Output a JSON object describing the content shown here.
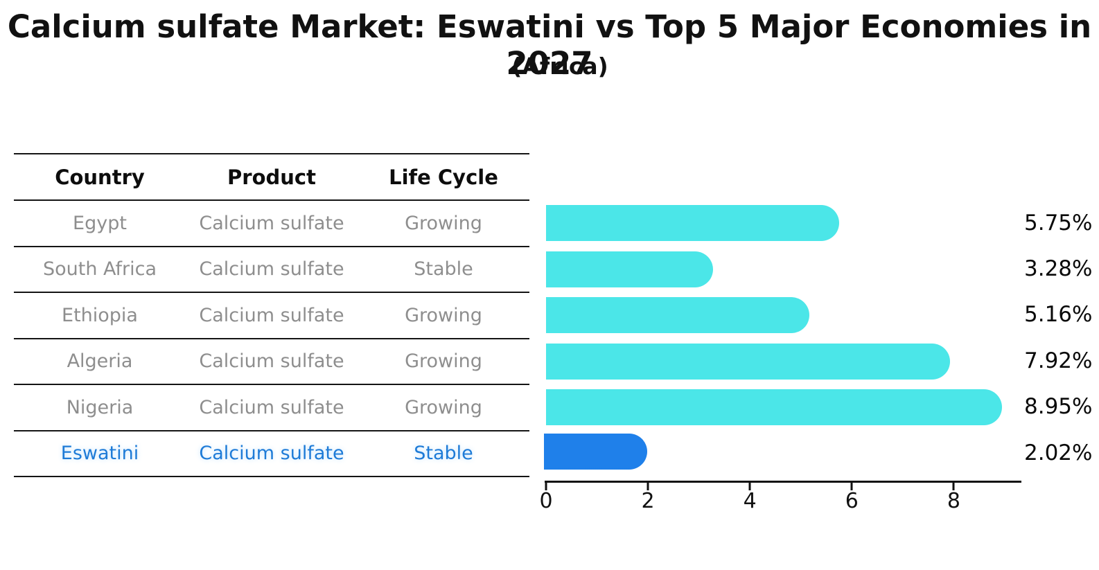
{
  "title": "Calcium sulfate Market: Eswatini vs Top 5 Major Economies in 2027",
  "subtitle": "(Africa)",
  "table": {
    "headers": [
      "Country",
      "Product",
      "Life Cycle"
    ],
    "rows": [
      {
        "country": "Egypt",
        "product": "Calcium sulfate",
        "life_cycle": "Growing",
        "highlight": false
      },
      {
        "country": "South Africa",
        "product": "Calcium sulfate",
        "life_cycle": "Stable",
        "highlight": false
      },
      {
        "country": "Ethiopia",
        "product": "Calcium sulfate",
        "life_cycle": "Growing",
        "highlight": false
      },
      {
        "country": "Algeria",
        "product": "Calcium sulfate",
        "life_cycle": "Growing",
        "highlight": false
      },
      {
        "country": "Nigeria",
        "product": "Calcium sulfate",
        "life_cycle": "Growing",
        "highlight": false
      },
      {
        "country": "Eswatini",
        "product": "Calcium sulfate",
        "life_cycle": "Stable",
        "highlight": true
      }
    ]
  },
  "chart_data": {
    "type": "bar",
    "orientation": "horizontal",
    "title": "Calcium sulfate Market: Eswatini vs Top 5 Major Economies in 2027 (Africa)",
    "categories": [
      "Egypt",
      "South Africa",
      "Ethiopia",
      "Algeria",
      "Nigeria",
      "Eswatini"
    ],
    "values": [
      5.75,
      3.28,
      5.16,
      7.92,
      8.95,
      2.02
    ],
    "value_labels": [
      "5.75%",
      "3.28%",
      "5.16%",
      "7.92%",
      "8.95%",
      "2.02%"
    ],
    "xlabel": "",
    "ylabel": "",
    "xlim": [
      0,
      9.3
    ],
    "xticks": [
      0,
      2,
      4,
      6,
      8
    ],
    "grid": false,
    "legend": "none",
    "bar_color": "#4be6e8",
    "highlight_bar_color": "#1f80ea",
    "highlight_index": 5
  },
  "colors": {
    "bar_cyan": "#4be6e8",
    "bar_blue": "#1f80ea",
    "highlight_text": "#1e7bd7",
    "row_text": "#8e8e8e",
    "axis_black": "#111111"
  }
}
